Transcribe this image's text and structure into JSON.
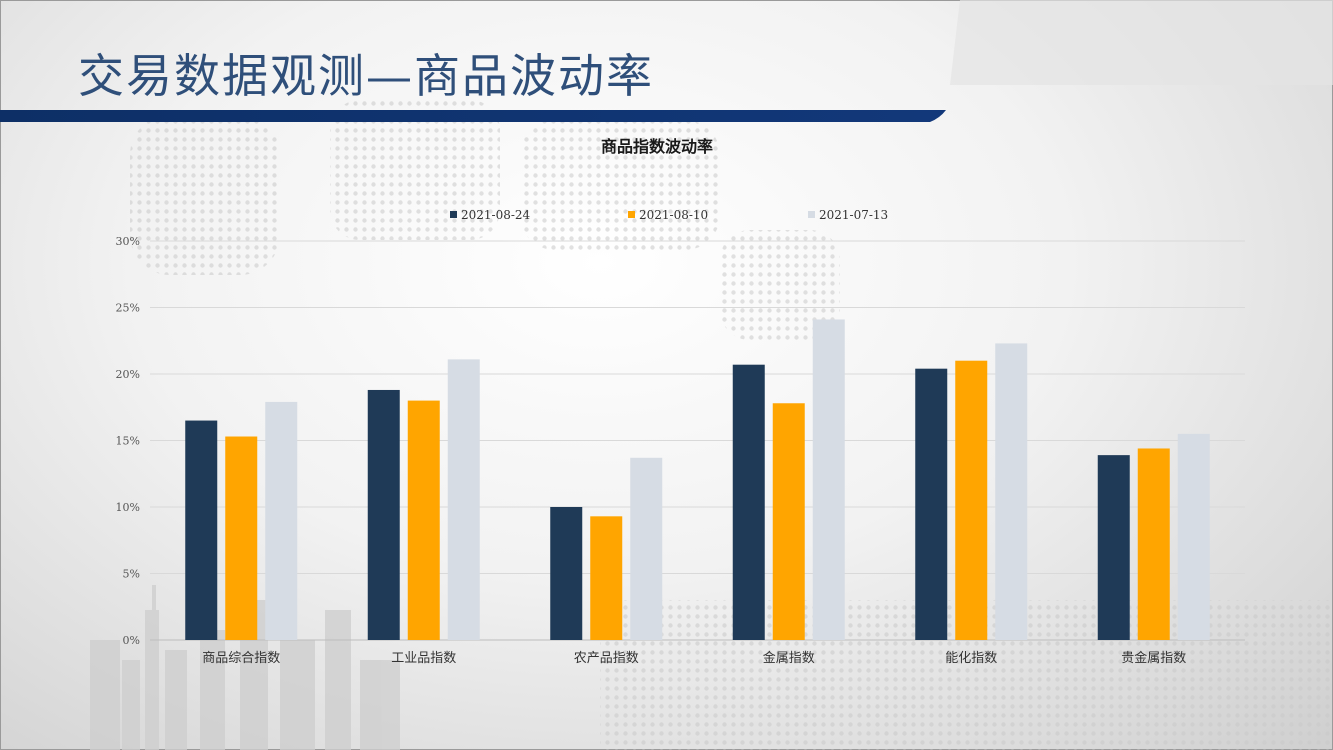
{
  "slide": {
    "title": "交易数据观测—商品波动率"
  },
  "colors": {
    "title": "#2f4f7a",
    "band": "#0d2f66",
    "series": [
      "#1f3a57",
      "#ffa500",
      "#d6dce4"
    ]
  },
  "chart_data": {
    "type": "bar",
    "title": "商品指数波动率",
    "categories": [
      "商品综合指数",
      "工业品指数",
      "农产品指数",
      "金属指数",
      "能化指数",
      "贵金属指数"
    ],
    "series": [
      {
        "name": "2021-08-24",
        "values": [
          0.165,
          0.188,
          0.1,
          0.207,
          0.204,
          0.139
        ]
      },
      {
        "name": "2021-08-10",
        "values": [
          0.153,
          0.18,
          0.093,
          0.178,
          0.21,
          0.144
        ]
      },
      {
        "name": "2021-07-13",
        "values": [
          0.179,
          0.211,
          0.137,
          0.241,
          0.223,
          0.155
        ]
      }
    ],
    "y_ticks": [
      "0%",
      "5%",
      "10%",
      "15%",
      "20%",
      "25%",
      "30%"
    ],
    "ylim": [
      0,
      0.3
    ],
    "grid": true,
    "legend": "top"
  }
}
